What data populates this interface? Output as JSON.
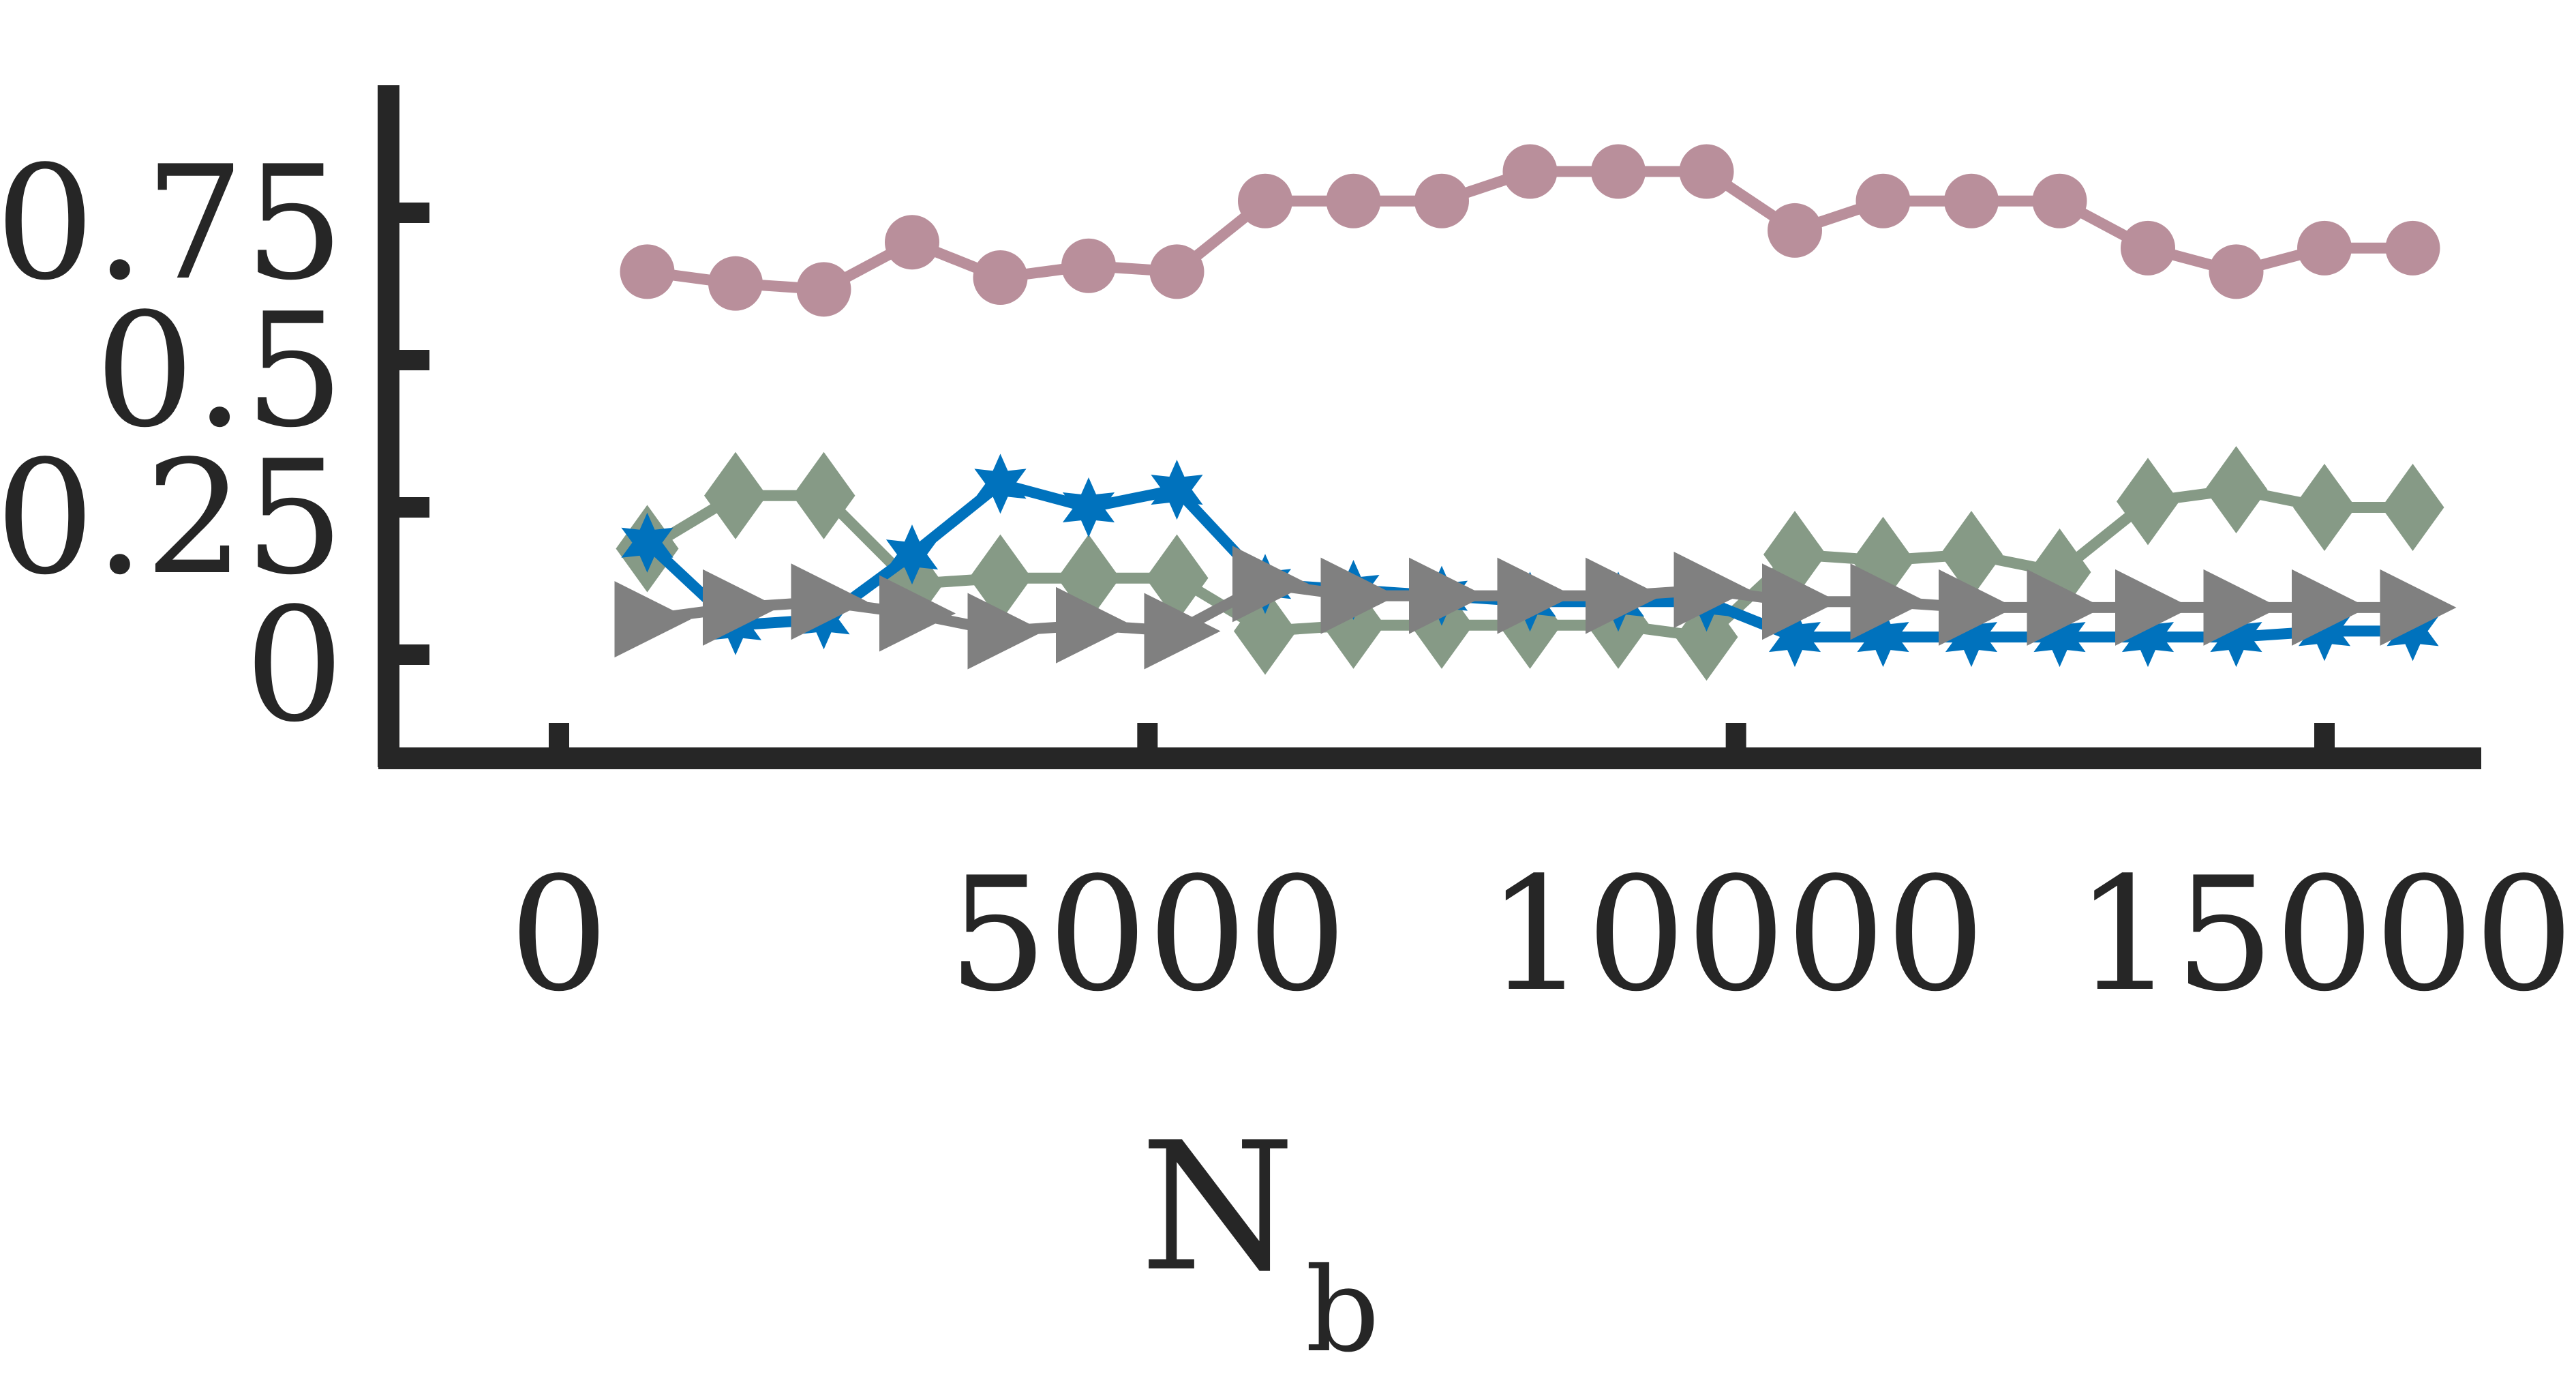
{
  "chart_data": {
    "type": "line",
    "title": "",
    "xlabel": {
      "main": "N",
      "subscript": "b"
    },
    "ylabel": "",
    "xlim": [
      -2500,
      15500
    ],
    "ylim": [
      -0.2,
      0.92
    ],
    "x_ticks": [
      0,
      5000,
      10000,
      15000
    ],
    "x_tick_labels": [
      "0",
      "5000",
      "10000",
      "15000"
    ],
    "y_ticks": [
      0,
      0.25,
      0.5,
      0.75
    ],
    "y_tick_labels": [
      "0",
      "0.25",
      "0.5",
      "0.75"
    ],
    "grid": false,
    "legend": "none",
    "series": [
      {
        "color": "#b98f9b",
        "marker": "circle",
        "x": [
          750,
          1500,
          2250,
          3000,
          3750,
          4500,
          5250,
          6000,
          6750,
          7500,
          8250,
          9000,
          9750,
          10500,
          11250,
          12000,
          12750,
          13500,
          14250,
          15000,
          15750
        ],
        "y": [
          0.65,
          0.63,
          0.62,
          0.7,
          0.64,
          0.66,
          0.65,
          0.77,
          0.77,
          0.77,
          0.82,
          0.82,
          0.82,
          0.72,
          0.77,
          0.77,
          0.77,
          0.69,
          0.65,
          0.69,
          0.69
        ]
      },
      {
        "color": "#869a86",
        "marker": "diamond",
        "x": [
          750,
          1500,
          2250,
          3000,
          3750,
          4500,
          5250,
          6000,
          6750,
          7500,
          8250,
          9000,
          9750,
          10500,
          11250,
          12000,
          12750,
          13500,
          14250,
          15000,
          15750
        ],
        "y": [
          0.18,
          0.27,
          0.27,
          0.12,
          0.13,
          0.13,
          0.13,
          0.04,
          0.05,
          0.05,
          0.05,
          0.05,
          0.03,
          0.17,
          0.16,
          0.17,
          0.14,
          0.26,
          0.28,
          0.25,
          0.25
        ]
      },
      {
        "color": "#0072bd",
        "marker": "hexagram",
        "x": [
          750,
          1500,
          2250,
          3000,
          3750,
          4500,
          5250,
          6000,
          6750,
          7500,
          8250,
          9000,
          9750,
          10500,
          11250,
          12000,
          12750,
          13500,
          14250,
          15000,
          15750
        ],
        "y": [
          0.19,
          0.05,
          0.06,
          0.17,
          0.29,
          0.25,
          0.28,
          0.12,
          0.11,
          0.1,
          0.09,
          0.09,
          0.09,
          0.03,
          0.03,
          0.03,
          0.03,
          0.03,
          0.03,
          0.04,
          0.04
        ]
      },
      {
        "color": "#808080",
        "marker": "triangle-right",
        "x": [
          750,
          1500,
          2250,
          3000,
          3750,
          4500,
          5250,
          6000,
          6750,
          7500,
          8250,
          9000,
          9750,
          10500,
          11250,
          12000,
          12750,
          13500,
          14250,
          15000,
          15750
        ],
        "y": [
          0.06,
          0.08,
          0.09,
          0.07,
          0.04,
          0.05,
          0.04,
          0.12,
          0.1,
          0.1,
          0.1,
          0.1,
          0.11,
          0.09,
          0.09,
          0.08,
          0.08,
          0.08,
          0.08,
          0.08,
          0.08
        ]
      }
    ]
  }
}
